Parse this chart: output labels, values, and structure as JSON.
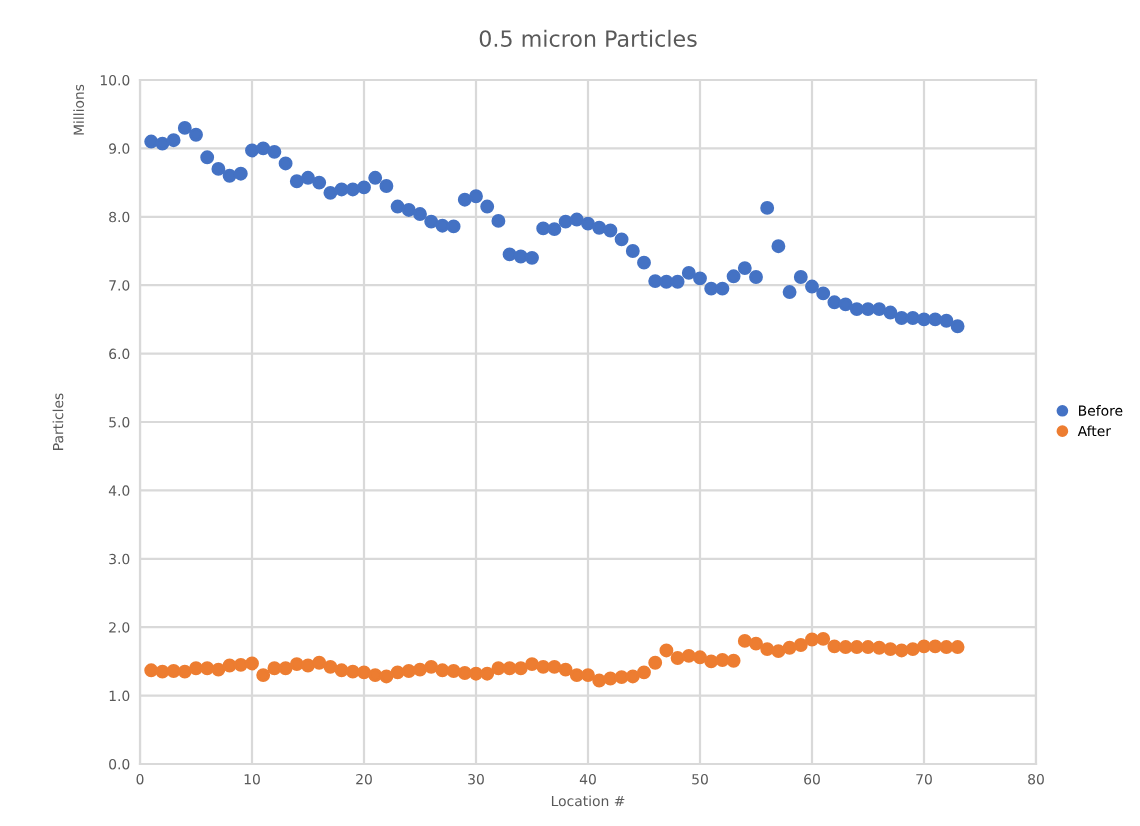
{
  "chart_data": {
    "type": "scatter",
    "title": "0.5 micron Particles",
    "xlabel": "Location #",
    "ylabel": "Particles",
    "annotations": [
      "Millions"
    ],
    "x": [
      1,
      2,
      3,
      4,
      5,
      6,
      7,
      8,
      9,
      10,
      11,
      12,
      13,
      14,
      15,
      16,
      17,
      18,
      19,
      20,
      21,
      22,
      23,
      24,
      25,
      26,
      27,
      28,
      29,
      30,
      31,
      32,
      33,
      34,
      35,
      36,
      37,
      38,
      39,
      40,
      41,
      42,
      43,
      44,
      45,
      46,
      47,
      48,
      49,
      50,
      51,
      52,
      53,
      54,
      55,
      56,
      57,
      58,
      59,
      60,
      61,
      62,
      63,
      64,
      65,
      66,
      67,
      68,
      69,
      70,
      71,
      72,
      73
    ],
    "series": [
      {
        "name": "Before",
        "color": "#4472c4",
        "values": [
          9.1,
          9.07,
          9.12,
          9.3,
          9.2,
          8.87,
          8.7,
          8.6,
          8.63,
          8.97,
          9.0,
          8.95,
          8.78,
          8.52,
          8.57,
          8.5,
          8.35,
          8.4,
          8.4,
          8.43,
          8.57,
          8.45,
          8.15,
          8.1,
          8.04,
          7.93,
          7.87,
          7.86,
          8.25,
          8.3,
          8.15,
          7.94,
          7.45,
          7.42,
          7.4,
          7.83,
          7.82,
          7.93,
          7.96,
          7.9,
          7.84,
          7.8,
          7.67,
          7.5,
          7.33,
          7.06,
          7.05,
          7.05,
          7.18,
          7.1,
          6.95,
          6.95,
          7.13,
          7.25,
          7.12,
          8.13,
          7.57,
          6.9,
          7.12,
          6.98,
          6.88,
          6.75,
          6.72,
          6.65,
          6.65,
          6.65,
          6.6,
          6.52,
          6.52,
          6.5,
          6.5,
          6.48,
          6.4
        ]
      },
      {
        "name": "After",
        "color": "#ed7d31",
        "values": [
          1.37,
          1.35,
          1.36,
          1.35,
          1.4,
          1.4,
          1.38,
          1.44,
          1.45,
          1.47,
          1.3,
          1.4,
          1.4,
          1.46,
          1.44,
          1.48,
          1.42,
          1.37,
          1.35,
          1.34,
          1.3,
          1.28,
          1.34,
          1.36,
          1.38,
          1.42,
          1.37,
          1.36,
          1.33,
          1.32,
          1.32,
          1.4,
          1.4,
          1.4,
          1.46,
          1.42,
          1.42,
          1.38,
          1.3,
          1.3,
          1.22,
          1.25,
          1.27,
          1.28,
          1.34,
          1.48,
          1.66,
          1.55,
          1.58,
          1.56,
          1.5,
          1.52,
          1.51,
          1.8,
          1.76,
          1.68,
          1.65,
          1.7,
          1.74,
          1.82,
          1.83,
          1.72,
          1.71,
          1.71,
          1.71,
          1.7,
          1.68,
          1.66,
          1.68,
          1.72,
          1.72,
          1.71,
          1.71
        ]
      }
    ],
    "xlim": [
      0,
      80
    ],
    "xticks": [
      0,
      10,
      20,
      30,
      40,
      50,
      60,
      70,
      80
    ],
    "ylim": [
      0,
      10
    ],
    "yticks": [
      {
        "value": 0,
        "label": "0.0"
      },
      {
        "value": 1,
        "label": "1.0"
      },
      {
        "value": 2,
        "label": "2.0"
      },
      {
        "value": 3,
        "label": "3.0"
      },
      {
        "value": 4,
        "label": "4.0"
      },
      {
        "value": 5,
        "label": "5.0"
      },
      {
        "value": 6,
        "label": "6.0"
      },
      {
        "value": 7,
        "label": "7.0"
      },
      {
        "value": 8,
        "label": "8.0"
      },
      {
        "value": 9,
        "label": "9.0"
      },
      {
        "value": 10,
        "label": "10.0"
      }
    ],
    "grid": true,
    "legend": "right",
    "marker": "circle"
  }
}
